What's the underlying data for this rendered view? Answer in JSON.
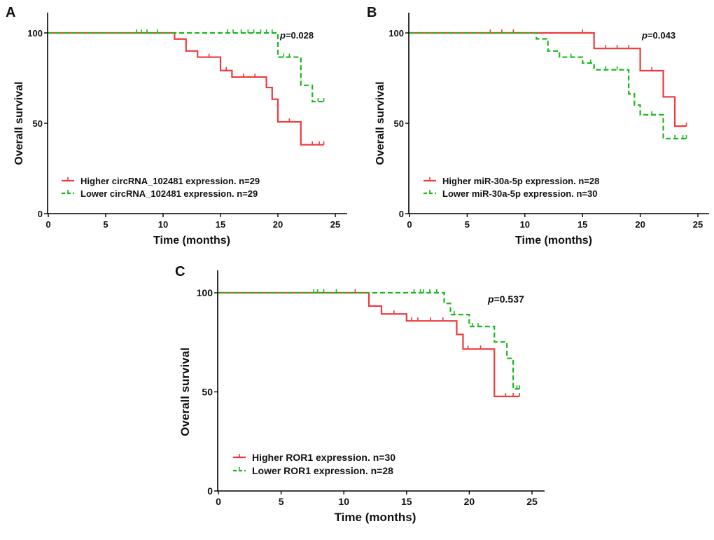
{
  "chart_data": [
    {
      "panel_label": "A",
      "type": "line",
      "subtype": "kaplan-meier",
      "xlabel": "Time (months)",
      "ylabel": "Overall survival",
      "xlim": [
        0,
        25
      ],
      "ylim": [
        0,
        100
      ],
      "xticks": [
        0,
        5,
        10,
        15,
        20,
        25
      ],
      "yticks": [
        0,
        50,
        100
      ],
      "grid": false,
      "legend_placement": "bottom-left",
      "annotation": {
        "prefix": "p",
        "text": "=0.028"
      },
      "series": [
        {
          "name": "Higher circRNA_102481 expression. n=29",
          "color": "#f0393b",
          "dash": false,
          "steps": [
            [
              0,
              100
            ],
            [
              11,
              96.6
            ],
            [
              12,
              90.0
            ],
            [
              13,
              86.6
            ],
            [
              15,
              79.2
            ],
            [
              16,
              75.6
            ],
            [
              19,
              69.8
            ],
            [
              19.5,
              63.3
            ],
            [
              20,
              50.8
            ],
            [
              22,
              38.1
            ],
            [
              24,
              38.1
            ]
          ],
          "censored": [
            14,
            15.5,
            17,
            18,
            21,
            23,
            23.6,
            24
          ]
        },
        {
          "name": "Lower circRNA_102481 expression. n=29",
          "color": "#1ab81a",
          "dash": true,
          "steps": [
            [
              0,
              100
            ],
            [
              20,
              86.6
            ],
            [
              22,
              71.0
            ],
            [
              23,
              62.0
            ],
            [
              24,
              62.0
            ]
          ],
          "censored": [
            7.7,
            8.1,
            8.6,
            9.5,
            15.6,
            16.1,
            16.8,
            17.4,
            17.9,
            18.5,
            19.0,
            19.5,
            20.5,
            21,
            23.5,
            24
          ]
        }
      ]
    },
    {
      "panel_label": "B",
      "type": "line",
      "subtype": "kaplan-meier",
      "xlabel": "Time (months)",
      "ylabel": "Overall survival",
      "xlim": [
        0,
        25
      ],
      "ylim": [
        0,
        100
      ],
      "xticks": [
        0,
        5,
        10,
        15,
        20,
        25
      ],
      "yticks": [
        0,
        50,
        100
      ],
      "grid": false,
      "legend_placement": "bottom-left",
      "annotation": {
        "prefix": "p",
        "text": "=0.043"
      },
      "series": [
        {
          "name": "Higher miR-30a-5p  expression. n=28",
          "color": "#f0393b",
          "dash": false,
          "steps": [
            [
              0,
              100
            ],
            [
              16,
              91.4
            ],
            [
              20,
              79.1
            ],
            [
              22,
              64.6
            ],
            [
              23,
              48.4
            ],
            [
              24,
              48.4
            ]
          ],
          "censored": [
            7,
            8,
            9,
            15,
            17,
            18,
            19,
            21,
            24
          ]
        },
        {
          "name": "Lower miR-30a-5p  expression. n=30",
          "color": "#1ab81a",
          "dash": true,
          "steps": [
            [
              0,
              100
            ],
            [
              11,
              96.7
            ],
            [
              12,
              90.0
            ],
            [
              13,
              86.6
            ],
            [
              15,
              83.3
            ],
            [
              16,
              79.6
            ],
            [
              19,
              66.3
            ],
            [
              19.5,
              60.1
            ],
            [
              20,
              54.7
            ],
            [
              22,
              41.5
            ],
            [
              24,
              41.5
            ]
          ],
          "censored": [
            14,
            15.7,
            17,
            18,
            21,
            23,
            23.7,
            24
          ]
        }
      ]
    },
    {
      "panel_label": "C",
      "type": "line",
      "subtype": "kaplan-meier",
      "xlabel": "Time (months)",
      "ylabel": "Overall survival",
      "xlim": [
        0,
        25
      ],
      "ylim": [
        0,
        100
      ],
      "xticks": [
        0,
        5,
        10,
        15,
        20,
        25
      ],
      "yticks": [
        0,
        50,
        100
      ],
      "grid": false,
      "legend_placement": "bottom-left",
      "annotation": {
        "prefix": "p",
        "text": "=0.537"
      },
      "series": [
        {
          "name": "Higher ROR1 expression. n=30",
          "color": "#f0393b",
          "dash": false,
          "steps": [
            [
              0,
              100
            ],
            [
              12,
              93.3
            ],
            [
              13,
              89.3
            ],
            [
              15,
              85.8
            ],
            [
              19,
              79.0
            ],
            [
              19.5,
              71.6
            ],
            [
              22,
              47.7
            ],
            [
              24,
              47.7
            ]
          ],
          "censored": [
            10.9,
            14,
            15.4,
            15.9,
            16.9,
            17.9,
            19.9,
            20.9,
            22.9,
            23.5,
            24
          ]
        },
        {
          "name": "Lower ROR1 expression. n=28",
          "color": "#1ab81a",
          "dash": true,
          "steps": [
            [
              0,
              100
            ],
            [
              18,
              94.6
            ],
            [
              18.5,
              89.0
            ],
            [
              20,
              83.0
            ],
            [
              22,
              75.2
            ],
            [
              23,
              66.9
            ],
            [
              23.5,
              51.5
            ],
            [
              24,
              51.5
            ]
          ],
          "censored": [
            7.6,
            7.9,
            8.4,
            9.4,
            15.6,
            16.1,
            16.35,
            16.85,
            17.4,
            18.8,
            20.25,
            20.7,
            23.8,
            24
          ]
        }
      ]
    }
  ]
}
